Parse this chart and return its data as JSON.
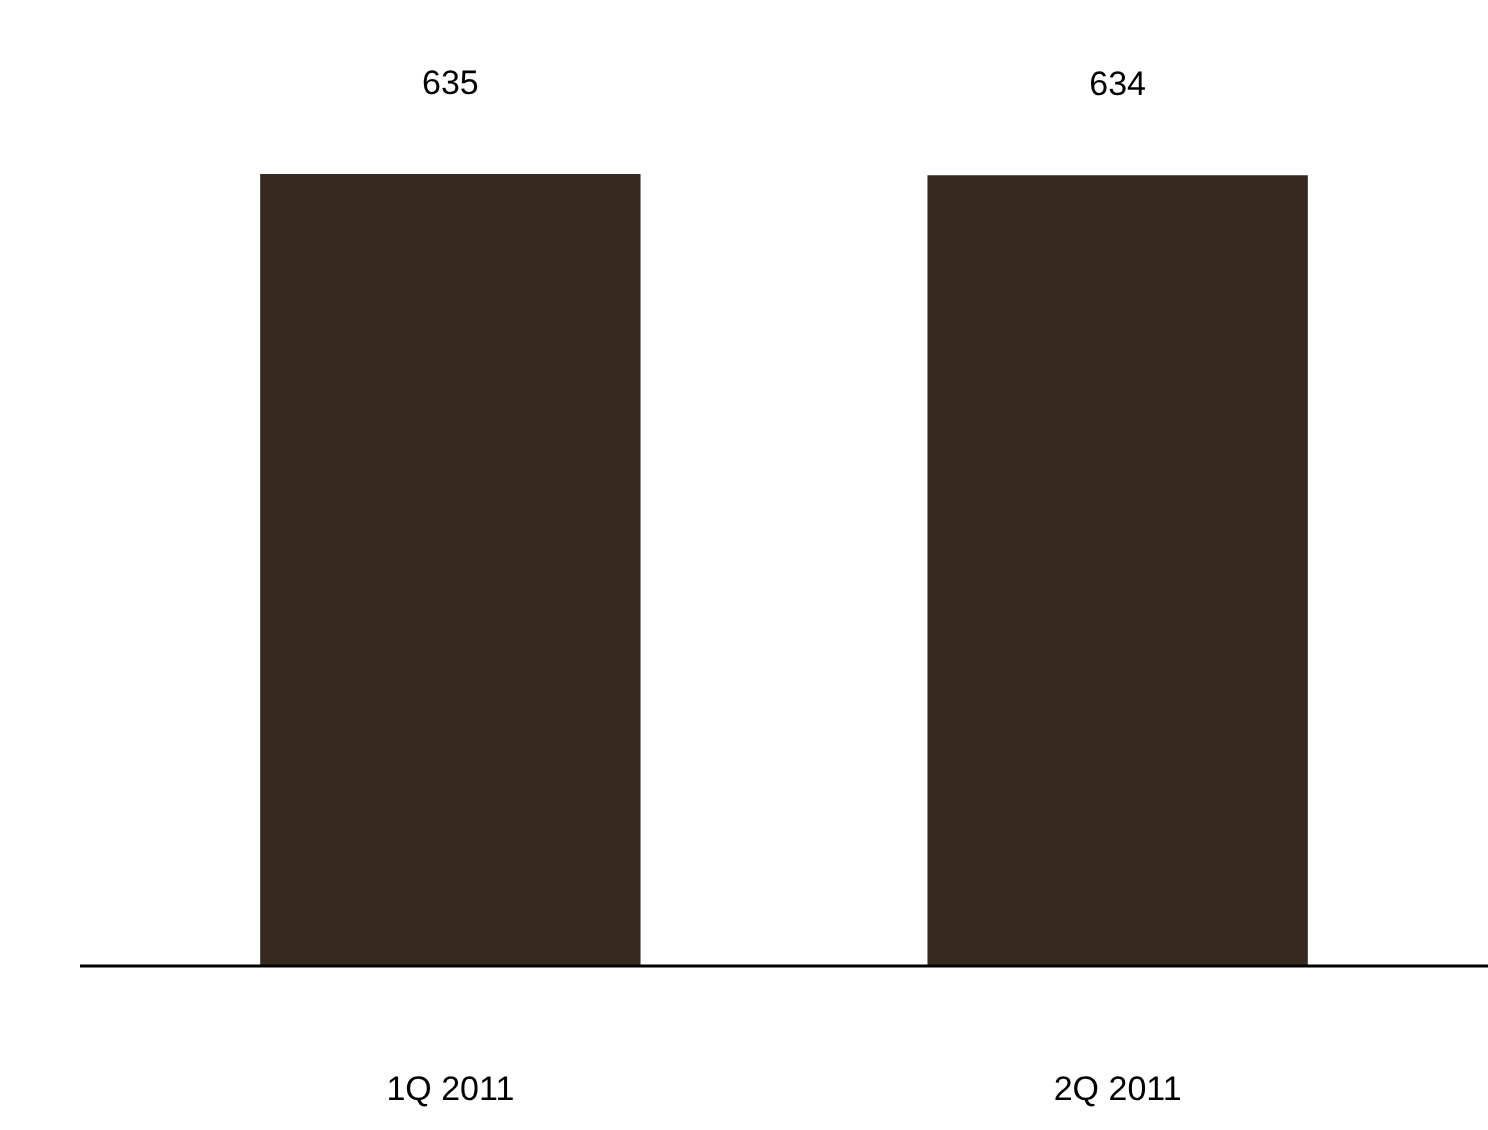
{
  "chart_data": {
    "type": "bar",
    "categories": [
      "1Q 2011",
      "2Q 2011"
    ],
    "values": [
      635,
      634
    ],
    "color": "#36291e",
    "data_labels": true
  }
}
